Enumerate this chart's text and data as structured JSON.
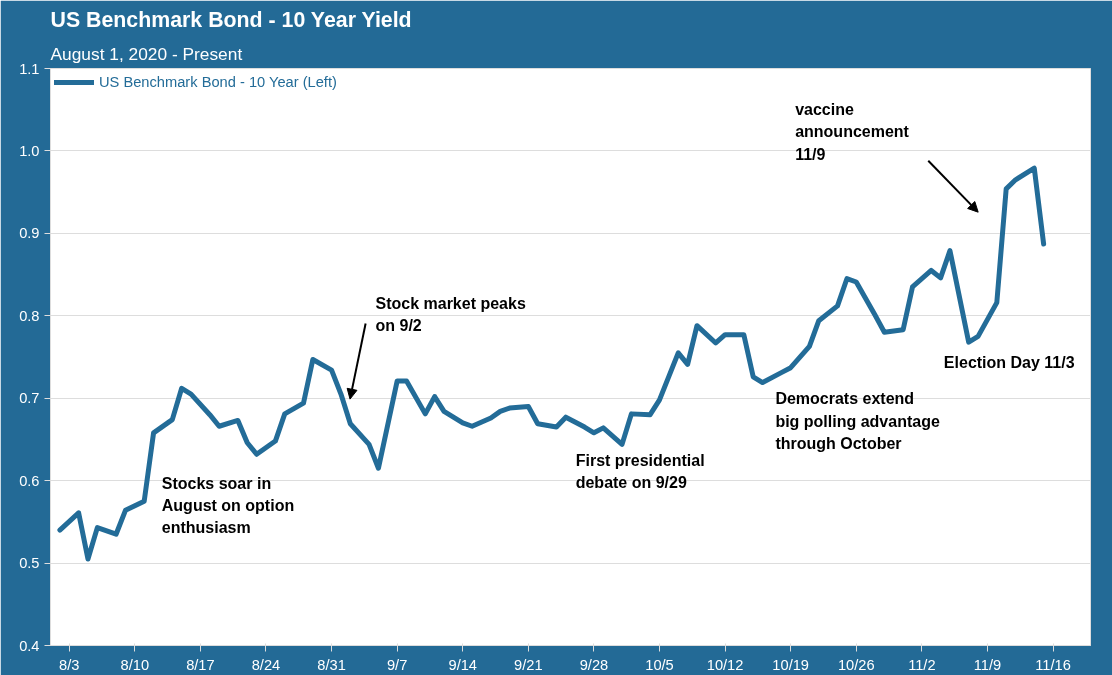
{
  "chart_data": {
    "type": "line",
    "title": "US Benchmark Bond - 10 Year Yield",
    "subtitle": "August 1, 2020 - Present",
    "x": [
      "2020-08-02",
      "2020-08-04",
      "2020-08-05",
      "2020-08-06",
      "2020-08-08",
      "2020-08-09",
      "2020-08-11",
      "2020-08-12",
      "2020-08-14",
      "2020-08-15",
      "2020-08-16",
      "2020-08-18",
      "2020-08-19",
      "2020-08-21",
      "2020-08-22",
      "2020-08-23",
      "2020-08-25",
      "2020-08-26",
      "2020-08-28",
      "2020-08-29",
      "2020-08-31",
      "2020-09-01",
      "2020-09-02",
      "2020-09-04",
      "2020-09-05",
      "2020-09-07",
      "2020-09-08",
      "2020-09-10",
      "2020-09-11",
      "2020-09-12",
      "2020-09-14",
      "2020-09-15",
      "2020-09-17",
      "2020-09-18",
      "2020-09-19",
      "2020-09-21",
      "2020-09-22",
      "2020-09-24",
      "2020-09-25",
      "2020-09-27",
      "2020-09-28",
      "2020-09-29",
      "2020-10-01",
      "2020-10-02",
      "2020-10-04",
      "2020-10-05",
      "2020-10-07",
      "2020-10-08",
      "2020-10-09",
      "2020-10-11",
      "2020-10-12",
      "2020-10-14",
      "2020-10-15",
      "2020-10-16",
      "2020-10-18",
      "2020-10-19",
      "2020-10-21",
      "2020-10-22",
      "2020-10-24",
      "2020-10-25",
      "2020-10-26",
      "2020-10-28",
      "2020-10-29",
      "2020-10-31",
      "2020-11-01",
      "2020-11-03",
      "2020-11-04",
      "2020-11-05",
      "2020-11-07",
      "2020-11-08",
      "2020-11-10",
      "2020-11-11",
      "2020-11-12",
      "2020-11-14",
      "2020-11-15"
    ],
    "series": [
      {
        "name": "US Benchmark Bond - 10 Year (Left)",
        "color": "#236c98",
        "values": [
          0.54,
          0.561,
          0.505,
          0.543,
          0.535,
          0.564,
          0.575,
          0.658,
          0.674,
          0.712,
          0.705,
          0.68,
          0.666,
          0.673,
          0.646,
          0.632,
          0.648,
          0.681,
          0.694,
          0.747,
          0.734,
          0.705,
          0.669,
          0.644,
          0.615,
          0.721,
          0.721,
          0.681,
          0.702,
          0.684,
          0.67,
          0.666,
          0.676,
          0.684,
          0.688,
          0.69,
          0.669,
          0.665,
          0.677,
          0.665,
          0.658,
          0.664,
          0.644,
          0.681,
          0.68,
          0.698,
          0.755,
          0.741,
          0.788,
          0.767,
          0.777,
          0.777,
          0.726,
          0.719,
          0.731,
          0.737,
          0.763,
          0.794,
          0.812,
          0.845,
          0.841,
          0.801,
          0.78,
          0.783,
          0.835,
          0.855,
          0.846,
          0.879,
          0.768,
          0.775,
          0.816,
          0.954,
          0.965,
          0.979,
          0.887
        ]
      }
    ],
    "xlim": [
      "2020-08-01",
      "2020-11-20"
    ],
    "xticks": [
      {
        "value": "2020-08-03",
        "label": "8/3"
      },
      {
        "value": "2020-08-10",
        "label": "8/10"
      },
      {
        "value": "2020-08-17",
        "label": "8/17"
      },
      {
        "value": "2020-08-24",
        "label": "8/24"
      },
      {
        "value": "2020-08-31",
        "label": "8/31"
      },
      {
        "value": "2020-09-07",
        "label": "9/7"
      },
      {
        "value": "2020-09-14",
        "label": "9/14"
      },
      {
        "value": "2020-09-21",
        "label": "9/21"
      },
      {
        "value": "2020-09-28",
        "label": "9/28"
      },
      {
        "value": "2020-10-05",
        "label": "10/5"
      },
      {
        "value": "2020-10-12",
        "label": "10/12"
      },
      {
        "value": "2020-10-19",
        "label": "10/19"
      },
      {
        "value": "2020-10-26",
        "label": "10/26"
      },
      {
        "value": "2020-11-02",
        "label": "11/2"
      },
      {
        "value": "2020-11-09",
        "label": "11/9"
      },
      {
        "value": "2020-11-16",
        "label": "11/16"
      }
    ],
    "ylim": [
      0.4,
      1.1
    ],
    "yticks": [
      {
        "value": 0.4,
        "label": "0.4"
      },
      {
        "value": 0.5,
        "label": "0.5"
      },
      {
        "value": 0.6,
        "label": "0.6"
      },
      {
        "value": 0.7,
        "label": "0.7"
      },
      {
        "value": 0.8,
        "label": "0.8"
      },
      {
        "value": 0.9,
        "label": "0.9"
      },
      {
        "value": 1.0,
        "label": "1.0"
      },
      {
        "value": 1.1,
        "label": "1.1"
      }
    ],
    "grid": "y",
    "legend": "top left",
    "marker": "none",
    "line_style": "solid",
    "annotations": [
      "Stocks soar in\nAugust on option\nenthusiasm",
      "Stock market peaks\non 9/2",
      "First presidential\ndebate on 9/29",
      "Democrats extend\nbig polling advantage\nthrough October",
      "Election Day 11/3",
      "vaccine\nannouncement\n11/9"
    ]
  }
}
